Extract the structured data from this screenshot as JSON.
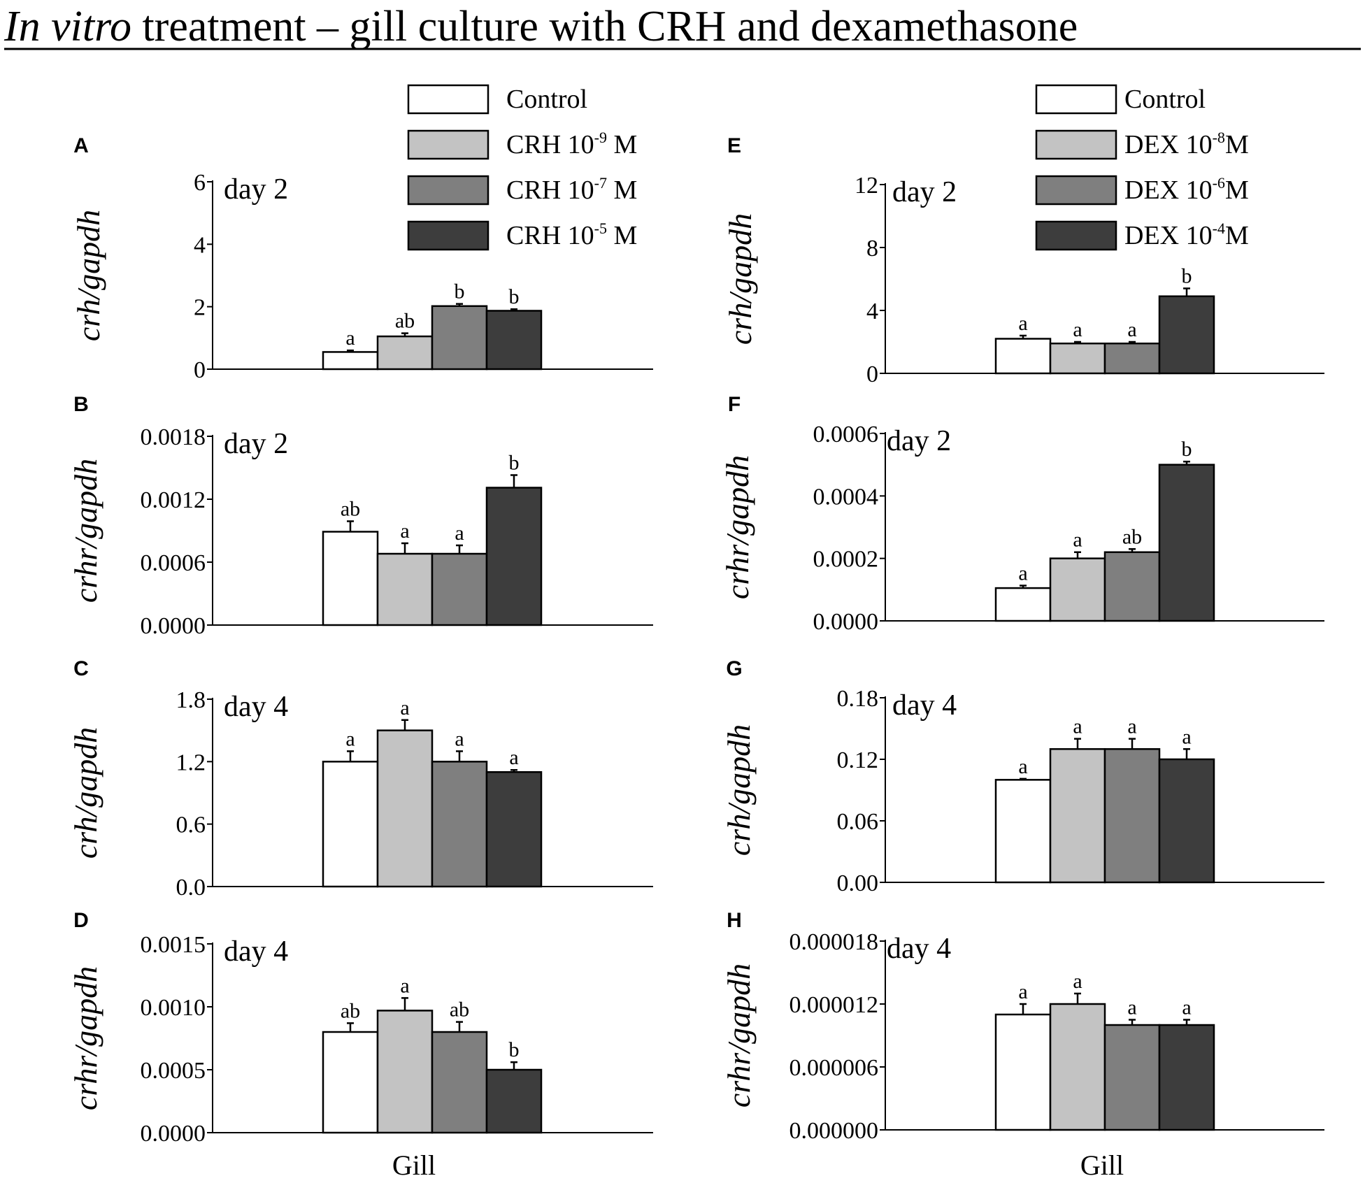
{
  "figure": {
    "title_italic": "In vitro",
    "title_rest": " treatment – gill culture with CRH and dexamethasone",
    "xlabel_left": "Gill",
    "xlabel_right": "Gill"
  },
  "colors": {
    "bar_fills": [
      "#ffffff",
      "#c3c3c3",
      "#7f7f7f",
      "#3d3d3d"
    ],
    "axis": "#000000"
  },
  "legends": {
    "left": [
      {
        "base": "Control",
        "sup": "",
        "unit": ""
      },
      {
        "base": "CRH 10",
        "sup": "-9",
        "unit": " M"
      },
      {
        "base": "CRH 10",
        "sup": "-7",
        "unit": " M"
      },
      {
        "base": "CRH 10",
        "sup": "-5",
        "unit": " M"
      }
    ],
    "right": [
      {
        "base": "Control",
        "sup": "",
        "unit": ""
      },
      {
        "base": "DEX 10",
        "sup": "-8",
        "unit": "M"
      },
      {
        "base": "DEX 10",
        "sup": "-6",
        "unit": "M"
      },
      {
        "base": "DEX 10",
        "sup": "-4",
        "unit": "M"
      }
    ]
  },
  "chart_data": [
    {
      "panel": "A",
      "type": "bar",
      "title": "day 2",
      "ylabel": "crh/gapdh",
      "xlabel": "Gill",
      "categories": [
        "Control",
        "CRH 10^-9 M",
        "CRH 10^-7 M",
        "CRH 10^-5 M"
      ],
      "values": [
        0.55,
        1.05,
        2.02,
        1.87
      ],
      "errors": [
        0.05,
        0.1,
        0.07,
        0.05
      ],
      "letters": [
        "a",
        "ab",
        "b",
        "b"
      ],
      "ylim": [
        0,
        6
      ],
      "yticks": [
        "0",
        "2",
        "4",
        "6"
      ]
    },
    {
      "panel": "B",
      "type": "bar",
      "title": "day 2",
      "ylabel": "crhr/gapdh",
      "xlabel": "Gill",
      "categories": [
        "Control",
        "CRH 10^-9 M",
        "CRH 10^-7 M",
        "CRH 10^-5 M"
      ],
      "values": [
        0.00089,
        0.00068,
        0.00068,
        0.00131
      ],
      "errors": [
        0.0001,
        0.0001,
        8e-05,
        0.00012
      ],
      "letters": [
        "ab",
        "a",
        "a",
        "b"
      ],
      "ylim": [
        0,
        0.0018
      ],
      "yticks": [
        "0.0000",
        "0.0006",
        "0.0012",
        "0.0018"
      ]
    },
    {
      "panel": "C",
      "type": "bar",
      "title": "day 4",
      "ylabel": "crh/gapdh",
      "xlabel": "Gill",
      "categories": [
        "Control",
        "CRH 10^-9 M",
        "CRH 10^-7 M",
        "CRH 10^-5 M"
      ],
      "values": [
        1.2,
        1.5,
        1.2,
        1.1
      ],
      "errors": [
        0.1,
        0.1,
        0.1,
        0.02
      ],
      "letters": [
        "a",
        "a",
        "a",
        "a"
      ],
      "ylim": [
        0,
        1.8
      ],
      "yticks": [
        "0.0",
        "0.6",
        "1.2",
        "1.8"
      ]
    },
    {
      "panel": "D",
      "type": "bar",
      "title": "day 4",
      "ylabel": "crhr/gapdh",
      "xlabel": "Gill",
      "categories": [
        "Control",
        "CRH 10^-9 M",
        "CRH 10^-7 M",
        "CRH 10^-5 M"
      ],
      "values": [
        0.0008,
        0.00097,
        0.0008,
        0.0005
      ],
      "errors": [
        7e-05,
        0.0001,
        8e-05,
        6e-05
      ],
      "letters": [
        "ab",
        "a",
        "ab",
        "b"
      ],
      "ylim": [
        0,
        0.0015
      ],
      "yticks": [
        "0.0000",
        "0.0005",
        "0.0010",
        "0.0015"
      ]
    },
    {
      "panel": "E",
      "type": "bar",
      "title": "day 2",
      "ylabel": "crh/gapdh",
      "xlabel": "Gill",
      "categories": [
        "Control",
        "DEX 10^-8 M",
        "DEX 10^-6 M",
        "DEX 10^-4 M"
      ],
      "values": [
        2.2,
        1.9,
        1.9,
        4.9
      ],
      "errors": [
        0.2,
        0.1,
        0.1,
        0.5
      ],
      "letters": [
        "a",
        "a",
        "a",
        "b"
      ],
      "ylim": [
        0,
        12
      ],
      "yticks": [
        "0",
        "4",
        "8",
        "12"
      ]
    },
    {
      "panel": "F",
      "type": "bar",
      "title": "day 2",
      "ylabel": "crhr/gapdh",
      "xlabel": "Gill",
      "categories": [
        "Control",
        "DEX 10^-8 M",
        "DEX 10^-6 M",
        "DEX 10^-4 M"
      ],
      "values": [
        0.000105,
        0.0002,
        0.00022,
        0.0005
      ],
      "errors": [
        8e-06,
        2e-05,
        1e-05,
        1e-05
      ],
      "letters": [
        "a",
        "a",
        "ab",
        "b"
      ],
      "ylim": [
        0,
        0.0006
      ],
      "yticks": [
        "0.0000",
        "0.0002",
        "0.0004",
        "0.0006"
      ]
    },
    {
      "panel": "G",
      "type": "bar",
      "title": "day 4",
      "ylabel": "crh/gapdh",
      "xlabel": "Gill",
      "categories": [
        "Control",
        "DEX 10^-8 M",
        "DEX 10^-6 M",
        "DEX 10^-4 M"
      ],
      "values": [
        0.1,
        0.13,
        0.13,
        0.12
      ],
      "errors": [
        0.001,
        0.01,
        0.01,
        0.01
      ],
      "letters": [
        "a",
        "a",
        "a",
        "a"
      ],
      "ylim": [
        0,
        0.18
      ],
      "yticks": [
        "0.00",
        "0.06",
        "0.12",
        "0.18"
      ]
    },
    {
      "panel": "H",
      "type": "bar",
      "title": "day 4",
      "ylabel": "crhr/gapdh",
      "xlabel": "Gill",
      "categories": [
        "Control",
        "DEX 10^-8 M",
        "DEX 10^-6 M",
        "DEX 10^-4 M"
      ],
      "values": [
        1.1e-05,
        1.2e-05,
        1e-05,
        1e-05
      ],
      "errors": [
        1e-06,
        1e-06,
        5e-07,
        5e-07
      ],
      "letters": [
        "a",
        "a",
        "a",
        "a"
      ],
      "ylim": [
        0,
        1.8e-05
      ],
      "yticks": [
        "0.000000",
        "0.000006",
        "0.000012",
        "0.000018"
      ]
    }
  ]
}
